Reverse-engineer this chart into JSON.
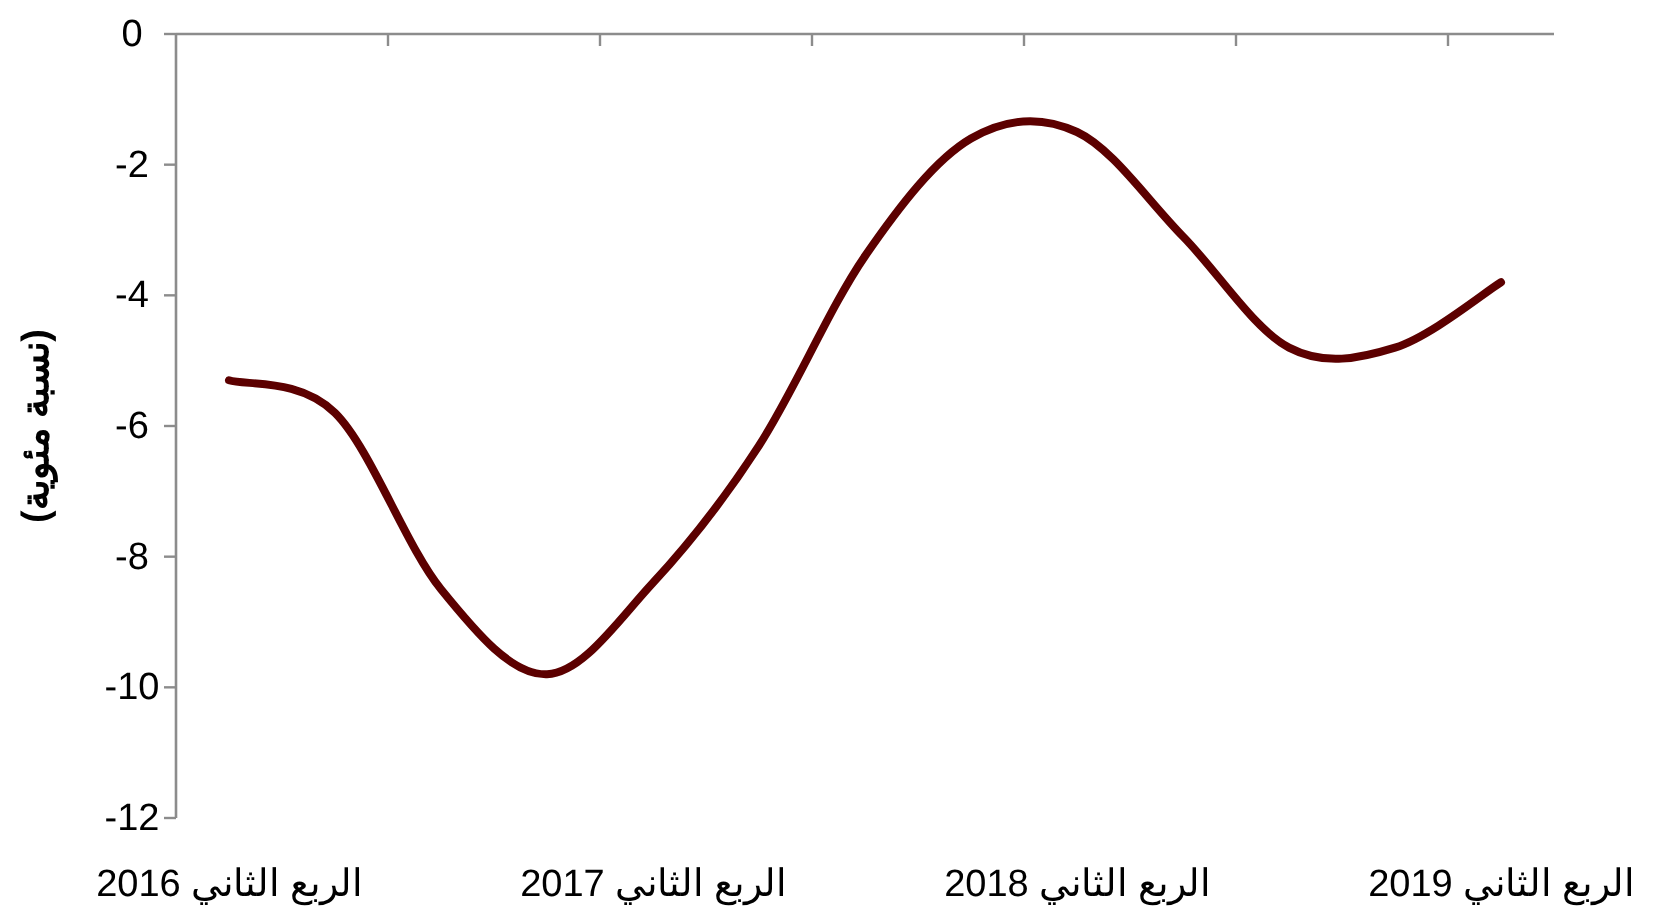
{
  "chart_data": {
    "type": "line",
    "ylabel": "(نسبة مئوية)",
    "categories": [
      "الربع الثاني 2016",
      null,
      null,
      null,
      "الربع الثاني 2017",
      null,
      null,
      null,
      "الربع الثاني 2018",
      null,
      null,
      null,
      "الربع الثاني 2019"
    ],
    "series": [
      {
        "color": "#5c0000",
        "values": [
          -5.3,
          -5.8,
          -8.5,
          -9.8,
          -8.4,
          -6.3,
          -3.4,
          -1.6,
          -1.5,
          -3.1,
          -4.8,
          -4.8,
          -3.8
        ]
      }
    ],
    "ylim": [
      -12,
      0
    ],
    "yticks": [
      -12,
      -10,
      -8,
      -6,
      -4,
      -2,
      0
    ],
    "grid": false,
    "marker": "none",
    "line_style": "solid"
  }
}
